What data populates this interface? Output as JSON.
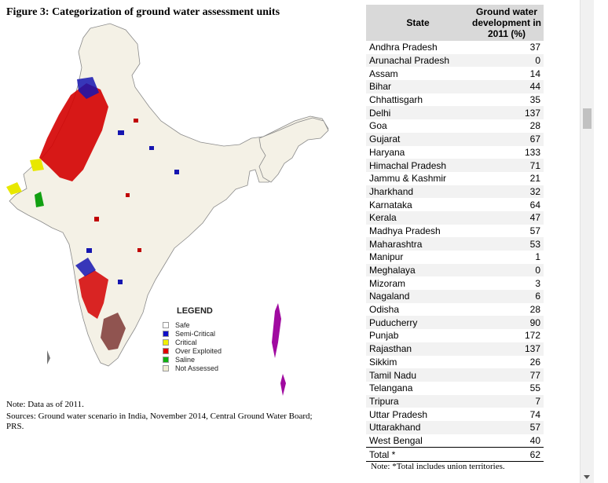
{
  "figure": {
    "title": "Figure 3: Categorization of ground water assessment units"
  },
  "legend": {
    "title": "LEGEND",
    "items": [
      {
        "label": "Safe",
        "color": "#ffffff"
      },
      {
        "label": "Semi-Critical",
        "color": "#1010c8"
      },
      {
        "label": "Critical",
        "color": "#f0f000"
      },
      {
        "label": "Over Exploited",
        "color": "#e00000"
      },
      {
        "label": "Saline",
        "color": "#10b010"
      },
      {
        "label": "Not Assessed",
        "color": "#f1ecd3"
      }
    ]
  },
  "notes": {
    "line1": "Note: Data as of 2011.",
    "line2": "Sources: Ground water scenario in India, November 2014, Central Ground Water Board; PRS."
  },
  "table": {
    "header_state": "State",
    "header_value": "Ground water development in 2011 (%)",
    "rows": [
      {
        "state": "Andhra Pradesh",
        "value": "37"
      },
      {
        "state": "Arunachal Pradesh",
        "value": "0"
      },
      {
        "state": "Assam",
        "value": "14"
      },
      {
        "state": "Bihar",
        "value": "44"
      },
      {
        "state": "Chhattisgarh",
        "value": "35"
      },
      {
        "state": "Delhi",
        "value": "137"
      },
      {
        "state": "Goa",
        "value": "28"
      },
      {
        "state": "Gujarat",
        "value": "67"
      },
      {
        "state": "Haryana",
        "value": "133"
      },
      {
        "state": "Himachal Pradesh",
        "value": "71"
      },
      {
        "state": "Jammu & Kashmir",
        "value": "21"
      },
      {
        "state": "Jharkhand",
        "value": "32"
      },
      {
        "state": "Karnataka",
        "value": "64"
      },
      {
        "state": "Kerala",
        "value": "47"
      },
      {
        "state": "Madhya Pradesh",
        "value": "57"
      },
      {
        "state": "Maharashtra",
        "value": "53"
      },
      {
        "state": "Manipur",
        "value": "1"
      },
      {
        "state": "Meghalaya",
        "value": "0"
      },
      {
        "state": "Mizoram",
        "value": "3"
      },
      {
        "state": "Nagaland",
        "value": "6"
      },
      {
        "state": "Odisha",
        "value": "28"
      },
      {
        "state": "Puducherry",
        "value": "90"
      },
      {
        "state": "Punjab",
        "value": "172"
      },
      {
        "state": "Rajasthan",
        "value": "137"
      },
      {
        "state": "Sikkim",
        "value": "26"
      },
      {
        "state": "Tamil Nadu",
        "value": "77"
      },
      {
        "state": "Telangana",
        "value": "55"
      },
      {
        "state": "Tripura",
        "value": "7"
      },
      {
        "state": "Uttar Pradesh",
        "value": "74"
      },
      {
        "state": "Uttarakhand",
        "value": "57"
      },
      {
        "state": "West Bengal",
        "value": "40"
      }
    ],
    "total": {
      "state": "Total *",
      "value": "62"
    },
    "note": "Note: *Total includes union territories."
  }
}
